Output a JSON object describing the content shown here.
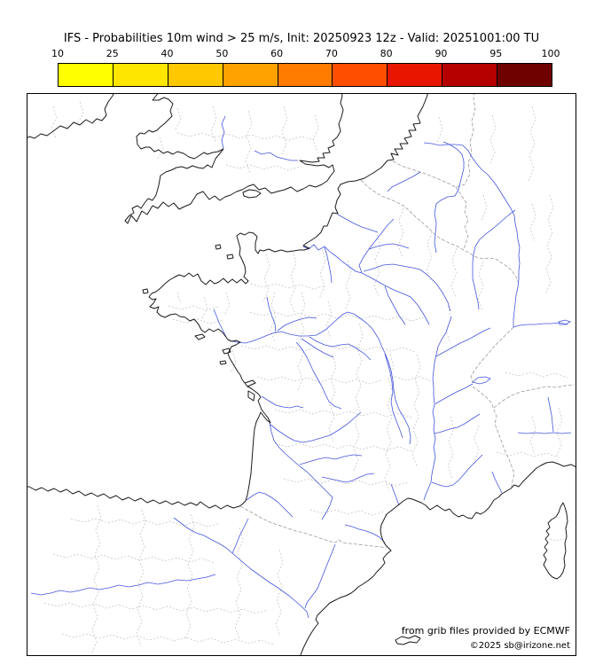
{
  "title": "IFS - Probabilities 10m wind > 25 m/s, Init: 20250923 12z - Valid: 20251001:00 TU",
  "colorbar": {
    "ticks": [
      "10",
      "25",
      "40",
      "50",
      "60",
      "70",
      "80",
      "90",
      "95",
      "100"
    ],
    "colors": [
      "#ffff00",
      "#ffe600",
      "#ffc800",
      "#ffa200",
      "#ff7c00",
      "#ff4e00",
      "#e81600",
      "#b60000",
      "#6e0000"
    ]
  },
  "map": {
    "coastline_color": "#1a1a1a",
    "river_color": "#4455dd",
    "admin_boundary_color": "#bdbdbd",
    "national_border_color": "#9a9a9a"
  },
  "credits": {
    "line1": "from grib files provided by ECMWF",
    "line2": "©2025 sb@irizone.net"
  }
}
